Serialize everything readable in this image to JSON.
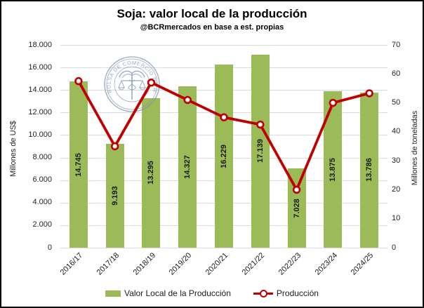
{
  "title": "Soja: valor local de la producción",
  "subtitle": "@BCRmercados en base a est. propias",
  "watermark": {
    "text": "BOLSA DE COMERCIO DE ROSARIO"
  },
  "colors": {
    "bar": "#9bbb59",
    "line": "#c00000",
    "grid": "#dbdbdb",
    "watermark": "#8094b5"
  },
  "chart_data": {
    "type": "bar+line",
    "categories": [
      "2016/17",
      "2017/18",
      "2018/19",
      "2019/20",
      "2020/21",
      "2021/22",
      "2022/23",
      "2023/24",
      "2024/25"
    ],
    "series": [
      {
        "name": "Valor Local de la Producción",
        "type": "bar",
        "axis": "left",
        "values": [
          14745,
          9193,
          13295,
          14327,
          16229,
          17139,
          7028,
          13875,
          13786
        ],
        "data_labels": [
          "14.745",
          "9.193",
          "13.295",
          "14.327",
          "16.229",
          "17.139",
          "7.028",
          "13.875",
          "13.786"
        ],
        "color": "#9bbb59"
      },
      {
        "name": "Producción",
        "type": "line",
        "axis": "right",
        "values": [
          57.5,
          35,
          57,
          51,
          45,
          42.5,
          20,
          50,
          53.3
        ],
        "color": "#c00000",
        "marker": "open-circle"
      }
    ],
    "left_axis": {
      "title": "Millones de US$",
      "min": 0,
      "max": 18000,
      "step": 2000,
      "ticks": [
        "18.000",
        "16.000",
        "14.000",
        "12.000",
        "10.000",
        "8.000",
        "6.000",
        "4.000",
        "2.000",
        "0"
      ]
    },
    "right_axis": {
      "title": "Millones de toneladas",
      "min": 0,
      "max": 70,
      "step": 10,
      "ticks": [
        "70",
        "60",
        "50",
        "40",
        "30",
        "20",
        "10",
        "0"
      ]
    },
    "grid": true,
    "legend_position": "bottom"
  }
}
